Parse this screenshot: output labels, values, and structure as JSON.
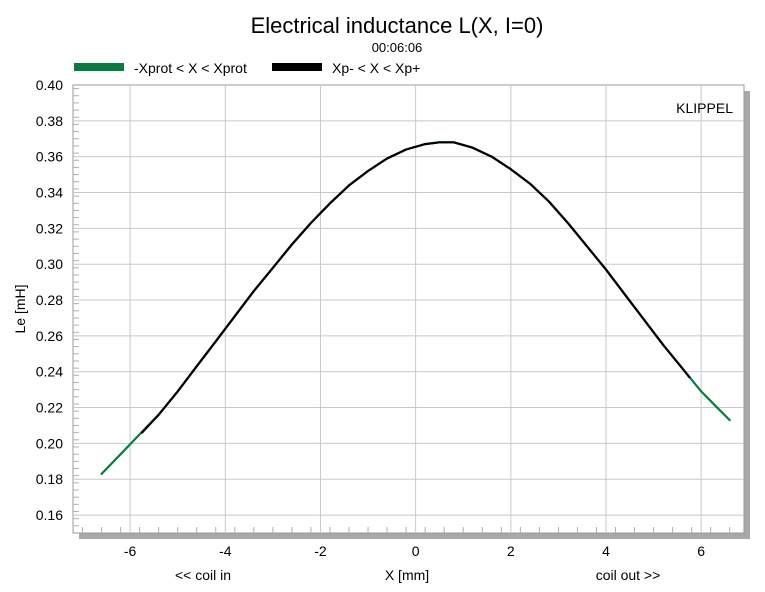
{
  "chart_data": {
    "type": "line",
    "title": "Electrical inductance L(X, I=0)",
    "subtitle": "00:06:06",
    "xlabel": "X [mm]",
    "ylabel": "Le [mH]",
    "x_left_note": "<< coil in",
    "x_right_note": "coil out >>",
    "brand": "KLIPPEL",
    "xlim": [
      -7.2,
      6.9
    ],
    "ylim": [
      0.15,
      0.4
    ],
    "xticks": [
      -6,
      -4,
      -2,
      0,
      2,
      4,
      6
    ],
    "yticks": [
      0.16,
      0.18,
      0.2,
      0.22,
      0.24,
      0.26,
      0.28,
      0.3,
      0.32,
      0.34,
      0.36,
      0.38,
      0.4
    ],
    "grid": true,
    "legend_position": "top-left",
    "series": [
      {
        "name": "-Xprot < X < Xprot",
        "color": "#0a7a40",
        "x": [
          -6.6,
          -6.2,
          -5.8,
          -5.4,
          -5.0,
          -4.6,
          -4.2,
          -3.8,
          -3.4,
          -3.0,
          -2.6,
          -2.2,
          -1.8,
          -1.4,
          -1.0,
          -0.6,
          -0.2,
          0.2,
          0.5,
          0.8,
          1.2,
          1.6,
          2.0,
          2.4,
          2.8,
          3.2,
          3.6,
          4.0,
          4.4,
          4.8,
          5.2,
          5.6,
          6.0,
          6.3,
          6.6
        ],
        "y": [
          0.183,
          0.194,
          0.205,
          0.216,
          0.229,
          0.243,
          0.257,
          0.271,
          0.285,
          0.298,
          0.311,
          0.323,
          0.334,
          0.344,
          0.352,
          0.359,
          0.364,
          0.367,
          0.368,
          0.368,
          0.365,
          0.36,
          0.353,
          0.345,
          0.335,
          0.323,
          0.31,
          0.297,
          0.283,
          0.269,
          0.255,
          0.242,
          0.229,
          0.221,
          0.213
        ]
      },
      {
        "name": "Xp- < X < Xp+",
        "color": "#000000",
        "x": [
          -5.75,
          -5.4,
          -5.0,
          -4.6,
          -4.2,
          -3.8,
          -3.4,
          -3.0,
          -2.6,
          -2.2,
          -1.8,
          -1.4,
          -1.0,
          -0.6,
          -0.2,
          0.2,
          0.5,
          0.8,
          1.2,
          1.6,
          2.0,
          2.4,
          2.8,
          3.2,
          3.6,
          4.0,
          4.4,
          4.8,
          5.2,
          5.6,
          5.75
        ],
        "y": [
          0.206,
          0.216,
          0.229,
          0.243,
          0.257,
          0.271,
          0.285,
          0.298,
          0.311,
          0.323,
          0.334,
          0.344,
          0.352,
          0.359,
          0.364,
          0.367,
          0.368,
          0.368,
          0.365,
          0.36,
          0.353,
          0.345,
          0.335,
          0.323,
          0.31,
          0.297,
          0.283,
          0.269,
          0.255,
          0.242,
          0.237
        ]
      }
    ]
  }
}
